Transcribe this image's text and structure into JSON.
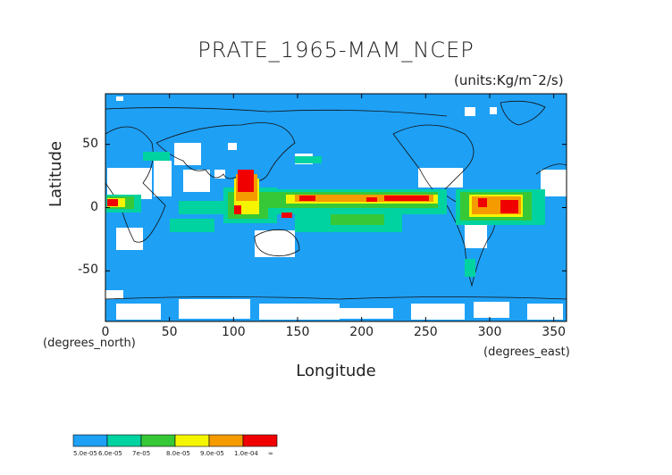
{
  "chart_data": {
    "type": "heatmap",
    "title": "PRATE_1965-MAM_NCEP",
    "units": "(units:Kg/m¯2/s)",
    "xlabel": "Longitude",
    "ylabel": "Latitude",
    "x_unit_label": "(degrees_east)",
    "y_unit_label": "(degrees_north)",
    "xlim": [
      0,
      360
    ],
    "ylim": [
      -90,
      90
    ],
    "x_ticks": [
      0,
      50,
      100,
      150,
      200,
      250,
      300,
      350
    ],
    "y_ticks": [
      50,
      0,
      -50
    ],
    "colorbar": {
      "labels": [
        "5.0e-05",
        "6.0e-05",
        "7e-05",
        "8.0e-05",
        "9.0e-05",
        "1.0e-04",
        "∞"
      ],
      "colors": [
        "#1ea0f5",
        "#00d2a0",
        "#37c837",
        "#f5f500",
        "#f59b00",
        "#f00000"
      ]
    },
    "background_color": "#1ea0f5"
  }
}
